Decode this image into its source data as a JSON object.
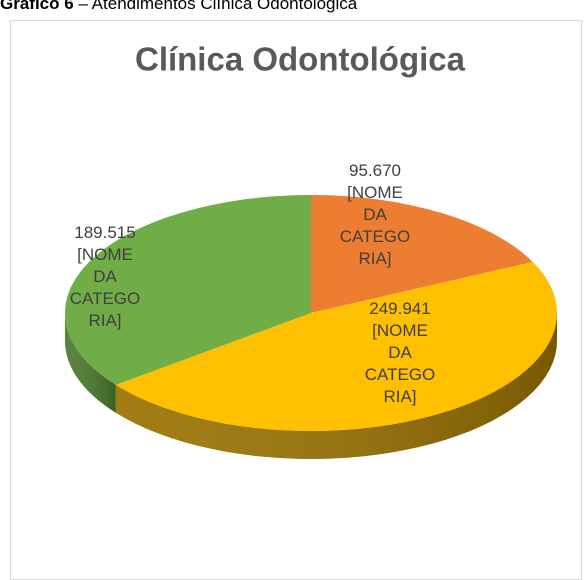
{
  "caption": {
    "label": "Gráfico 6",
    "text": "– Atendimentos Clínica Odontológica"
  },
  "chart_data": {
    "type": "pie",
    "title": "Clínica Odontológica",
    "categories": [
      "[NOME DA CATEGORIA]",
      "[NOME DA CATEGORIA]",
      "[NOME DA CATEGORIA]"
    ],
    "values": [
      95670,
      249941,
      189515
    ],
    "value_labels": [
      "95.670",
      "249.941",
      "189.515"
    ],
    "colors": [
      "#ed7d31",
      "#ffc000",
      "#70ad47"
    ],
    "side_colors": [
      "#b85a1c",
      "#9a7200",
      "#4a7a2c"
    ]
  }
}
